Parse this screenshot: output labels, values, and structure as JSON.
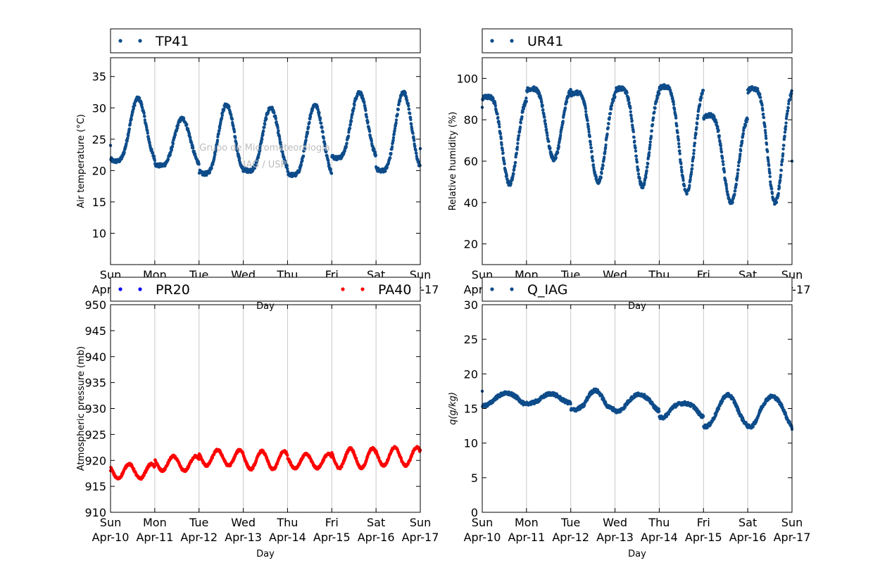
{
  "watermark": [
    "Grupo de Micrometeorologia",
    "IAG / USP"
  ],
  "day_ticks": [
    {
      "day": "Sun",
      "date": "Apr-10"
    },
    {
      "day": "Mon",
      "date": "Apr-11"
    },
    {
      "day": "Tue",
      "date": "Apr-12"
    },
    {
      "day": "Wed",
      "date": "Apr-13"
    },
    {
      "day": "Thu",
      "date": "Apr-14"
    },
    {
      "day": "Fri",
      "date": "Apr-15"
    },
    {
      "day": "Sat",
      "date": "Apr-16"
    },
    {
      "day": "Sun",
      "date": "Apr-17"
    }
  ],
  "chart_data": [
    {
      "type": "scatter",
      "title": "",
      "xlabel": "Day",
      "ylabel": "Air temperature (°C)",
      "xlim": [
        "2016-04-10",
        "2016-04-17"
      ],
      "ylim": [
        5,
        38
      ],
      "yticks": [
        10,
        15,
        20,
        25,
        30,
        35
      ],
      "grid": "vertical",
      "legend_placement": "top",
      "series": [
        {
          "name": "TP41",
          "color": "#0e4c8a",
          "daily_min": [
            21.5,
            20.8,
            19.5,
            20.0,
            19.3,
            22.0,
            20.0
          ],
          "daily_max": [
            31.5,
            28.3,
            30.5,
            30.0,
            30.5,
            32.5,
            32.5
          ],
          "start_value": 24.0,
          "end_value": 23.5
        }
      ]
    },
    {
      "type": "scatter",
      "title": "",
      "xlabel": "Day",
      "ylabel": "Relative humidity (%)",
      "xlim": [
        "2016-04-10",
        "2016-04-17"
      ],
      "ylim": [
        10,
        110
      ],
      "yticks": [
        20,
        40,
        60,
        80,
        100
      ],
      "grid": "vertical",
      "legend_placement": "top",
      "series": [
        {
          "name": "UR41",
          "color": "#0e4c8a",
          "daily_max": [
            91,
            95,
            93,
            95,
            96,
            82,
            95
          ],
          "daily_min": [
            49,
            61,
            50,
            48,
            45,
            40,
            40
          ],
          "start_value": 86,
          "end_value": 60
        }
      ]
    },
    {
      "type": "scatter",
      "title": "",
      "xlabel": "Day",
      "ylabel": "Atmospheric pressure (mb)",
      "xlim": [
        "2016-04-10",
        "2016-04-17"
      ],
      "ylim": [
        910,
        950
      ],
      "yticks": [
        910,
        915,
        920,
        925,
        930,
        935,
        940,
        945,
        950
      ],
      "grid": "vertical",
      "legend_placement": "top",
      "series": [
        {
          "name": "PR20",
          "color": "#0000ff",
          "values": []
        },
        {
          "name": "PA40",
          "color": "#ff0000",
          "daily_min": [
            916.5,
            918.0,
            919.0,
            918.3,
            918.5,
            918.5,
            919.0
          ],
          "daily_max": [
            919.3,
            920.8,
            922.0,
            921.8,
            921.2,
            922.3,
            922.5
          ],
          "start_value": 918.0,
          "end_value": 922.0
        }
      ]
    },
    {
      "type": "scatter",
      "title": "",
      "xlabel": "Day",
      "ylabel": "q(g/kg)",
      "xlim": [
        "2016-04-10",
        "2016-04-17"
      ],
      "ylim": [
        0,
        30
      ],
      "yticks": [
        0,
        5,
        10,
        15,
        20,
        25,
        30
      ],
      "grid": "vertical",
      "legend_placement": "top",
      "series": [
        {
          "name": "Q_IAG",
          "color": "#0e4c8a",
          "daily_mean": [
            16.5,
            16.3,
            15.5,
            16.0,
            15.2,
            14.5,
            15.0
          ],
          "daily_max": [
            17.5,
            17.5,
            18.5,
            17.5,
            16.0,
            18.0,
            17.5
          ],
          "daily_min": [
            15.0,
            15.5,
            14.5,
            14.0,
            13.0,
            11.5,
            11.2
          ],
          "start_value": 17.5,
          "end_value": 12.0
        }
      ]
    }
  ]
}
